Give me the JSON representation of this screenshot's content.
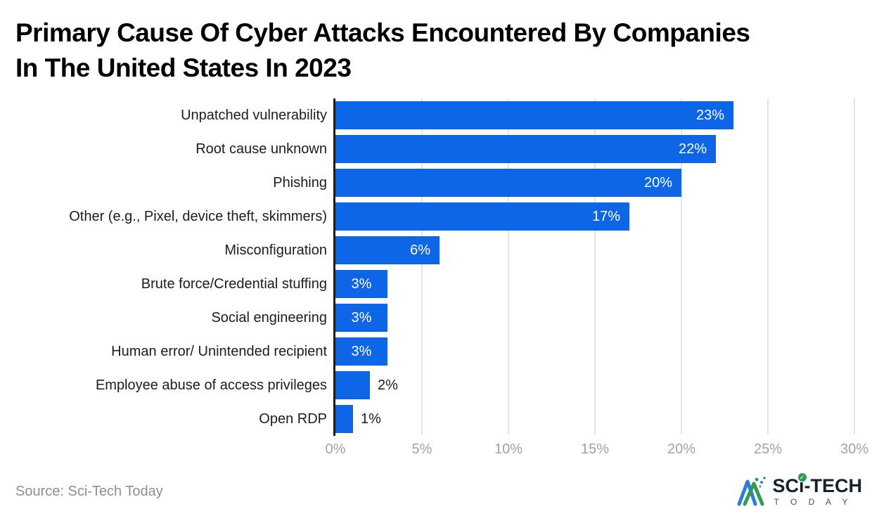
{
  "title": {
    "line1": "Primary Cause Of Cyber Attacks Encountered By Companies",
    "line2": "In The United States In 2023",
    "full": "Primary Cause Of Cyber Attacks Encountered By Companies In The United States In 2023"
  },
  "chart_data": {
    "type": "bar",
    "orientation": "horizontal",
    "title": "Primary Cause Of Cyber Attacks Encountered By Companies In The United States In 2023",
    "categories": [
      "Unpatched vulnerability",
      "Root cause unknown",
      "Phishing",
      "Other (e.g., Pixel, device theft, skimmers)",
      "Misconfiguration",
      "Brute force/Credential stuffing",
      "Social engineering",
      "Human error/ Unintended recipient",
      "Employee abuse of access privileges",
      "Open RDP"
    ],
    "values": [
      23,
      22,
      20,
      17,
      6,
      3,
      3,
      3,
      2,
      1
    ],
    "value_labels": [
      "23%",
      "22%",
      "20%",
      "17%",
      "6%",
      "3%",
      "3%",
      "3%",
      "2%",
      "1%"
    ],
    "xlabel": "",
    "ylabel": "",
    "xlim": [
      0,
      30
    ],
    "xticks": [
      "0%",
      "5%",
      "10%",
      "15%",
      "20%",
      "25%",
      "30%"
    ],
    "xtick_values": [
      0,
      5,
      10,
      15,
      20,
      25,
      30
    ],
    "grid": true,
    "legend": null
  },
  "colors": {
    "bar": "#0d66e5",
    "grid": "#e4e4e4",
    "axis": "#1a1a1a",
    "tick": "#a2a2a2",
    "title": "#000000",
    "label": "#1c1c1c",
    "source": "#8e8e8e",
    "bg": "#ffffff",
    "logo_blue": "#2f7ce0",
    "logo_green": "#2e9e4e",
    "logo_text": "#13222e"
  },
  "footer": {
    "source": "Source: Sci-Tech Today",
    "logo": {
      "brand": "SCı-TECH",
      "brand_sub": "T O D A Y",
      "check": "✓"
    }
  }
}
